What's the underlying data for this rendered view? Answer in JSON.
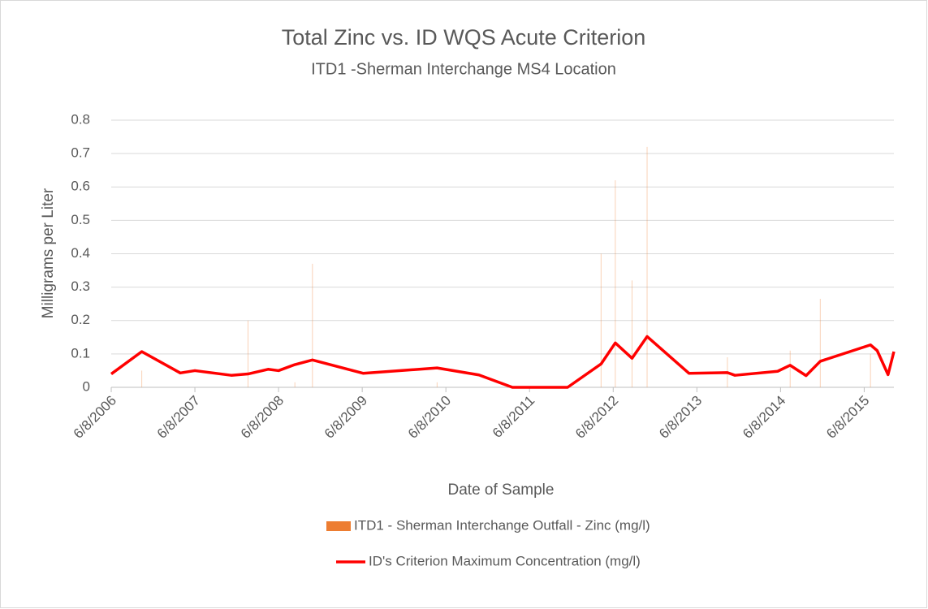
{
  "chart_data": {
    "type": "bar_line",
    "title": "Total Zinc vs. ID WQS Acute Criterion",
    "subtitle": "ITD1 -Sherman Interchange MS4 Location",
    "xlabel": "Date of Sample",
    "ylabel": "Milligrams per Liter",
    "x": [
      2006.435,
      2006.8,
      2007.26,
      2007.435,
      2007.87,
      2008.07,
      2008.31,
      2008.435,
      2008.63,
      2008.84,
      2009.445,
      2010.33,
      2010.83,
      2011.23,
      2011.89,
      2012.29,
      2012.46,
      2012.66,
      2012.84,
      2013.34,
      2013.8,
      2013.89,
      2014.4,
      2014.55,
      2014.74,
      2014.91,
      2015.51,
      2015.59,
      2015.72,
      2015.79
    ],
    "series": [
      {
        "name": "ITD1 - Sherman Interchange Outfall - Zinc (mg/l)",
        "color": "#ed7d31",
        "kind": "bar",
        "values": [
          null,
          0.05,
          null,
          null,
          null,
          0.2,
          null,
          null,
          0.015,
          0.37,
          null,
          0.015,
          null,
          null,
          null,
          0.4,
          0.62,
          0.32,
          0.72,
          null,
          0.09,
          null,
          null,
          0.11,
          null,
          0.265,
          0.1,
          null,
          null,
          null
        ]
      },
      {
        "name": "ID's Criterion Maximum Concentration (mg/l)",
        "color": "#ff0000",
        "kind": "line",
        "values": [
          0.04,
          0.107,
          0.043,
          0.05,
          0.036,
          0.04,
          0.054,
          0.05,
          0.068,
          0.082,
          0.042,
          0.058,
          0.037,
          0,
          0,
          0.07,
          0.133,
          0.087,
          0.152,
          0.042,
          0.044,
          0.036,
          0.048,
          0.066,
          0.035,
          0.078,
          0.127,
          0.11,
          0.038,
          0.107
        ]
      }
    ],
    "xlim": [
      2006.435,
      2015.79
    ],
    "xticks": [
      {
        "value": 2006.435,
        "label": "6/8/2006"
      },
      {
        "value": 2007.435,
        "label": "6/8/2007"
      },
      {
        "value": 2008.435,
        "label": "6/8/2008"
      },
      {
        "value": 2009.435,
        "label": "6/8/2009"
      },
      {
        "value": 2010.435,
        "label": "6/8/2010"
      },
      {
        "value": 2011.435,
        "label": "6/8/2011"
      },
      {
        "value": 2012.435,
        "label": "6/8/2012"
      },
      {
        "value": 2013.435,
        "label": "6/8/2013"
      },
      {
        "value": 2014.435,
        "label": "6/8/2014"
      },
      {
        "value": 2015.435,
        "label": "6/8/2015"
      }
    ],
    "ylim": [
      0,
      0.8
    ],
    "yticks": [
      0,
      0.1,
      0.2,
      0.3,
      0.4,
      0.5,
      0.6,
      0.7,
      0.8
    ],
    "grid": true,
    "legend": "bottom"
  }
}
